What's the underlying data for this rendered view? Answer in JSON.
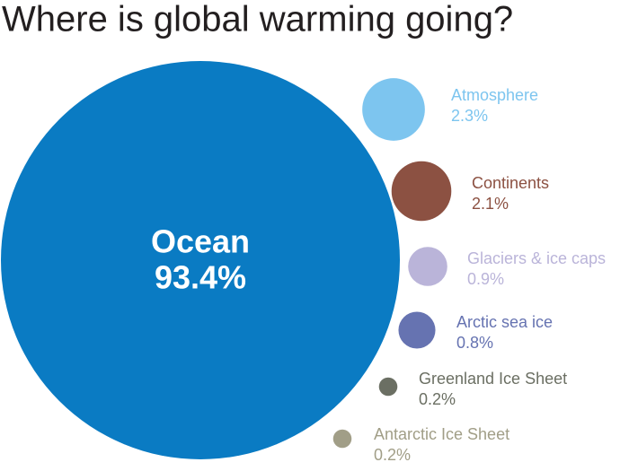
{
  "chart_data": {
    "type": "bubble",
    "title": "Where is global warming going?",
    "categories": [
      "Ocean",
      "Atmosphere",
      "Continents",
      "Glaciers & ice caps",
      "Arctic sea ice",
      "Greenland Ice Sheet",
      "Antarctic Ice Sheet"
    ],
    "values": [
      93.4,
      2.3,
      2.1,
      0.9,
      0.8,
      0.2,
      0.2
    ],
    "value_labels": [
      "93.4%",
      "2.3%",
      "2.1%",
      "0.9%",
      "0.8%",
      "0.2%",
      "0.2%"
    ],
    "colors": [
      "#0a7bc3",
      "#7dc5ef",
      "#8c5142",
      "#bab4d9",
      "#6673b1",
      "#6b6f63",
      "#a19e87"
    ]
  }
}
